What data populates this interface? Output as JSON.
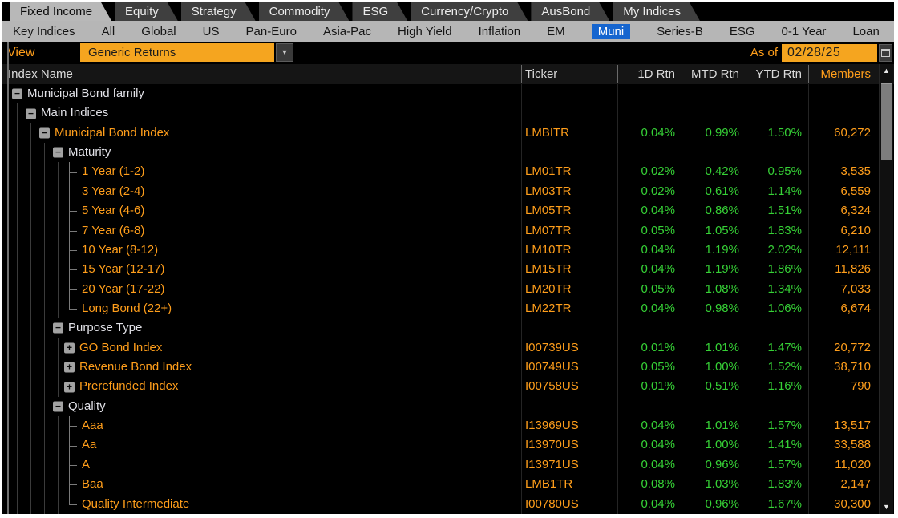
{
  "colors": {
    "accent_orange": "#ff9e1b",
    "field_orange": "#f5a51f",
    "positive_green": "#36d136",
    "active_blue": "#1565cf",
    "tab_active_bg": "#b8b8b8",
    "subnav_bg": "#b6b6b6",
    "background": "#000000"
  },
  "icons": {
    "dropdown_arrow": "▼",
    "scroll_up": "▲",
    "scroll_down": "▼"
  },
  "tabs": [
    {
      "label": "Fixed Income",
      "active": true
    },
    {
      "label": "Equity",
      "active": false
    },
    {
      "label": "Strategy",
      "active": false
    },
    {
      "label": "Commodity",
      "active": false
    },
    {
      "label": "ESG",
      "active": false
    },
    {
      "label": "Currency/Crypto",
      "active": false
    },
    {
      "label": "AusBond",
      "active": false
    },
    {
      "label": "My Indices",
      "active": false
    }
  ],
  "subnav": {
    "items": [
      {
        "label": "Key Indices",
        "active": false
      },
      {
        "label": "All",
        "active": false
      },
      {
        "label": "Global",
        "active": false
      },
      {
        "label": "US",
        "active": false
      },
      {
        "label": "Pan-Euro",
        "active": false
      },
      {
        "label": "Asia-Pac",
        "active": false
      },
      {
        "label": "High Yield",
        "active": false
      },
      {
        "label": "Inflation",
        "active": false
      },
      {
        "label": "EM",
        "active": false
      },
      {
        "label": "Muni",
        "active": true
      },
      {
        "label": "Series-B",
        "active": false
      },
      {
        "label": "ESG",
        "active": false
      },
      {
        "label": "0-1 Year",
        "active": false
      },
      {
        "label": "Loan",
        "active": false
      }
    ]
  },
  "toolbar": {
    "view_label": "View",
    "view_value": "Generic Returns",
    "asof_label": "As of",
    "asof_date": "02/28/25"
  },
  "table": {
    "headers": {
      "index_name": "Index Name",
      "ticker": "Ticker",
      "rtn_1d": "1D Rtn",
      "rtn_mtd": "MTD Rtn",
      "rtn_ytd": "YTD Rtn",
      "members": "Members"
    },
    "rows": [
      {
        "level": 0,
        "icon": "minus",
        "label": "Municipal Bond family",
        "c": "w",
        "guides": []
      },
      {
        "level": 1,
        "icon": "minus",
        "label": "Main Indices",
        "c": "w",
        "guides": [
          19
        ]
      },
      {
        "level": 2,
        "icon": "minus",
        "label": "Municipal Bond Index",
        "c": "o",
        "guides": [
          19,
          36
        ],
        "ticker": "LMBITR",
        "rtn_1d": "0.04%",
        "rtn_mtd": "0.99%",
        "rtn_ytd": "1.50%",
        "members": "60,272"
      },
      {
        "level": 3,
        "icon": "minus",
        "label": "Maturity",
        "c": "w",
        "guides": [
          19,
          36,
          53
        ]
      },
      {
        "branch": "mid",
        "label": "1 Year (1-2)",
        "c": "o",
        "guides": [
          19,
          36,
          53,
          70
        ],
        "ticker": "LM01TR",
        "rtn_1d": "0.02%",
        "rtn_mtd": "0.42%",
        "rtn_ytd": "0.95%",
        "members": "3,535"
      },
      {
        "branch": "mid",
        "label": "3 Year (2-4)",
        "c": "o",
        "guides": [
          19,
          36,
          53,
          70
        ],
        "ticker": "LM03TR",
        "rtn_1d": "0.02%",
        "rtn_mtd": "0.61%",
        "rtn_ytd": "1.14%",
        "members": "6,559"
      },
      {
        "branch": "mid",
        "label": "5 Year (4-6)",
        "c": "o",
        "guides": [
          19,
          36,
          53,
          70
        ],
        "ticker": "LM05TR",
        "rtn_1d": "0.04%",
        "rtn_mtd": "0.86%",
        "rtn_ytd": "1.51%",
        "members": "6,324"
      },
      {
        "branch": "mid",
        "label": "7 Year (6-8)",
        "c": "o",
        "guides": [
          19,
          36,
          53,
          70
        ],
        "ticker": "LM07TR",
        "rtn_1d": "0.05%",
        "rtn_mtd": "1.05%",
        "rtn_ytd": "1.83%",
        "members": "6,210"
      },
      {
        "branch": "mid",
        "label": "10 Year (8-12)",
        "c": "o",
        "guides": [
          19,
          36,
          53,
          70
        ],
        "ticker": "LM10TR",
        "rtn_1d": "0.04%",
        "rtn_mtd": "1.19%",
        "rtn_ytd": "2.02%",
        "members": "12,111"
      },
      {
        "branch": "mid",
        "label": "15 Year (12-17)",
        "c": "o",
        "guides": [
          19,
          36,
          53,
          70
        ],
        "ticker": "LM15TR",
        "rtn_1d": "0.04%",
        "rtn_mtd": "1.19%",
        "rtn_ytd": "1.86%",
        "members": "11,826"
      },
      {
        "branch": "mid",
        "label": "20 Year (17-22)",
        "c": "o",
        "guides": [
          19,
          36,
          53,
          70
        ],
        "ticker": "LM20TR",
        "rtn_1d": "0.05%",
        "rtn_mtd": "1.08%",
        "rtn_ytd": "1.34%",
        "members": "7,033"
      },
      {
        "branch": "end",
        "label": "Long Bond (22+)",
        "c": "o",
        "guides": [
          19,
          36,
          53,
          70
        ],
        "ticker": "LM22TR",
        "rtn_1d": "0.04%",
        "rtn_mtd": "0.98%",
        "rtn_ytd": "1.06%",
        "members": "6,674"
      },
      {
        "level": 3,
        "icon": "minus",
        "label": "Purpose Type",
        "c": "w",
        "guides": [
          19,
          36,
          53
        ]
      },
      {
        "level": 4,
        "icon": "plus",
        "label": "GO Bond Index",
        "c": "o",
        "guides": [
          19,
          36,
          53,
          70
        ],
        "ticker": "I00739US",
        "rtn_1d": "0.01%",
        "rtn_mtd": "1.01%",
        "rtn_ytd": "1.47%",
        "members": "20,772"
      },
      {
        "level": 4,
        "icon": "plus",
        "label": "Revenue Bond Index",
        "c": "o",
        "guides": [
          19,
          36,
          53,
          70
        ],
        "ticker": "I00749US",
        "rtn_1d": "0.05%",
        "rtn_mtd": "1.00%",
        "rtn_ytd": "1.52%",
        "members": "38,710"
      },
      {
        "level": 4,
        "icon": "plus",
        "label": "Prerefunded Index",
        "c": "o",
        "guides": [
          19,
          36,
          53,
          70
        ],
        "ticker": "I00758US",
        "rtn_1d": "0.01%",
        "rtn_mtd": "0.51%",
        "rtn_ytd": "1.16%",
        "members": "790"
      },
      {
        "level": 3,
        "icon": "minus",
        "label": "Quality",
        "c": "w",
        "guides": [
          19,
          36,
          53
        ]
      },
      {
        "branch": "mid",
        "label": "Aaa",
        "c": "o",
        "guides": [
          19,
          36,
          53,
          70
        ],
        "ticker": "I13969US",
        "rtn_1d": "0.04%",
        "rtn_mtd": "1.01%",
        "rtn_ytd": "1.57%",
        "members": "13,517"
      },
      {
        "branch": "mid",
        "label": "Aa",
        "c": "o",
        "guides": [
          19,
          36,
          53,
          70
        ],
        "ticker": "I13970US",
        "rtn_1d": "0.04%",
        "rtn_mtd": "1.00%",
        "rtn_ytd": "1.41%",
        "members": "33,588"
      },
      {
        "branch": "mid",
        "label": "A",
        "c": "o",
        "guides": [
          19,
          36,
          53,
          70
        ],
        "ticker": "I13971US",
        "rtn_1d": "0.04%",
        "rtn_mtd": "0.96%",
        "rtn_ytd": "1.57%",
        "members": "11,020"
      },
      {
        "branch": "mid",
        "label": "Baa",
        "c": "o",
        "guides": [
          19,
          36,
          53,
          70
        ],
        "ticker": "LMB1TR",
        "rtn_1d": "0.08%",
        "rtn_mtd": "1.03%",
        "rtn_ytd": "1.83%",
        "members": "2,147"
      },
      {
        "branch": "end",
        "label": "Quality Intermediate",
        "c": "o",
        "guides": [
          19,
          36,
          53,
          70
        ],
        "ticker": "I00780US",
        "rtn_1d": "0.04%",
        "rtn_mtd": "0.96%",
        "rtn_ytd": "1.67%",
        "members": "30,300"
      }
    ]
  }
}
